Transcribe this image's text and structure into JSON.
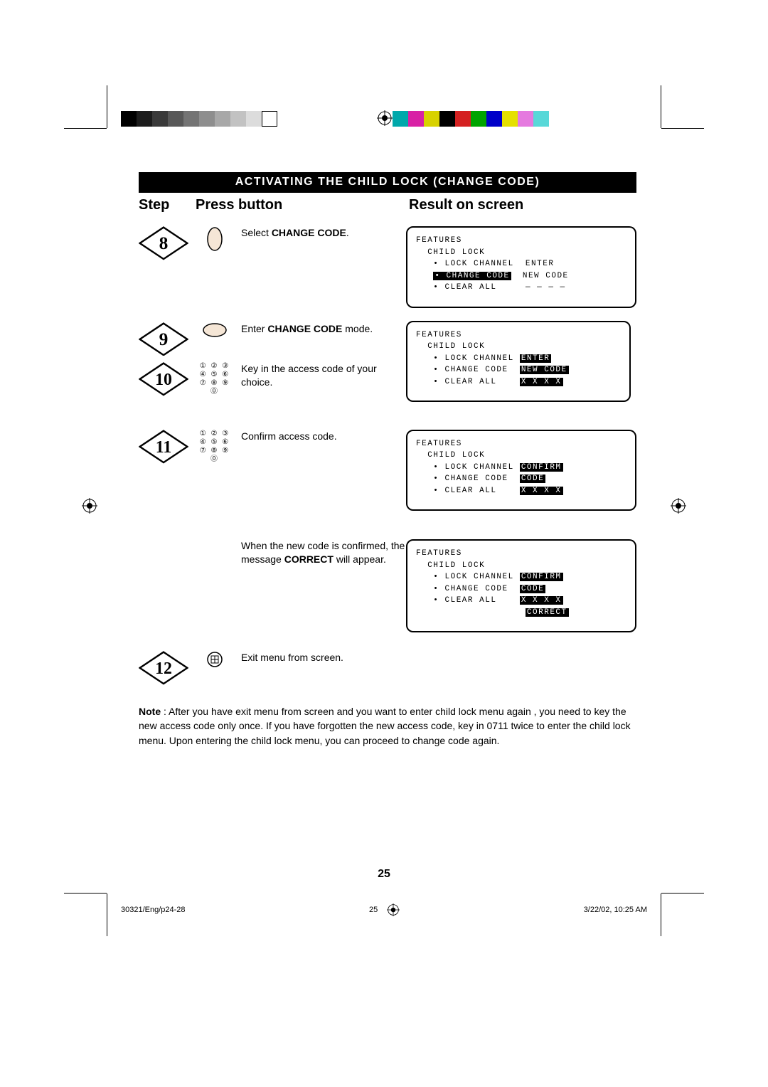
{
  "colorbars": {
    "gray": [
      "#000000",
      "#1c1c1c",
      "#3a3a3a",
      "#585858",
      "#747474",
      "#8e8e8e",
      "#a8a8a8",
      "#c2c2c2",
      "#dcdcdc",
      "#ffffff"
    ],
    "gray_border": "#000000",
    "color": [
      "#00a8ab",
      "#d821a5",
      "#d8d200",
      "#000000",
      "#d42121",
      "#00a400",
      "#0000c9",
      "#e5e000",
      "#e57adf",
      "#58d8d8"
    ]
  },
  "header": {
    "title": "ACTIVATING  THE CHILD LOCK (CHANGE CODE)",
    "step": "Step",
    "press": "Press button",
    "result": "Result on screen"
  },
  "steps": {
    "s8": {
      "num": "8",
      "instr_pre": "Select ",
      "instr_bold": "CHANGE CODE",
      "instr_post": "."
    },
    "s9": {
      "num": "9",
      "instr_pre": "Enter ",
      "instr_bold": "CHANGE CODE",
      "instr_post": " mode."
    },
    "s10": {
      "num": "10",
      "instr": "Key in the access code of your choice."
    },
    "s11": {
      "num": "11",
      "instr": "Confirm access code."
    },
    "confirm": {
      "pre": "When the new code is confirmed, the message ",
      "bold": "CORRECT",
      "post": " will appear."
    },
    "s12": {
      "num": "12",
      "instr": "Exit menu from screen."
    }
  },
  "screens": {
    "common": {
      "features": "FEATURES",
      "child": "  CHILD LOCK",
      "lock": "   • LOCK CHANNEL",
      "change": "   • CHANGE CODE",
      "clear": "   • CLEAR ALL"
    },
    "a": {
      "lock_val": "ENTER",
      "change_val": "NEW CODE",
      "clear_val": "— — — —",
      "highlight": "change_label"
    },
    "b": {
      "lock_val": "ENTER",
      "change_val": "NEW CODE",
      "clear_val": "X X X X",
      "highlight": "right_all"
    },
    "c": {
      "lock_val": "CONFIRM",
      "change_val": "CODE",
      "clear_val": "X X X X",
      "highlight": "right_all"
    },
    "d": {
      "lock_val": "CONFIRM",
      "change_val": "CODE",
      "clear_val": "X X X X",
      "extra": "CORRECT",
      "highlight": "right_all"
    }
  },
  "keypad_rows": [
    "① ② ③",
    "④ ⑤ ⑥",
    "⑦ ⑧ ⑨",
    "⓪"
  ],
  "menu_btn_label": "⊞",
  "note": {
    "label": "Note",
    "text": " : After you have exit menu from screen and  you want to enter child lock menu again , you need to key the new access code only once. If you have forgotten the new access code, key in 0711 twice to enter the child lock menu. Upon entering the child lock menu, you can proceed to change code again."
  },
  "page_number": "25",
  "footer": {
    "left": "30321/Eng/p24-28",
    "mid": "25",
    "right": "3/22/02, 10:25 AM"
  }
}
